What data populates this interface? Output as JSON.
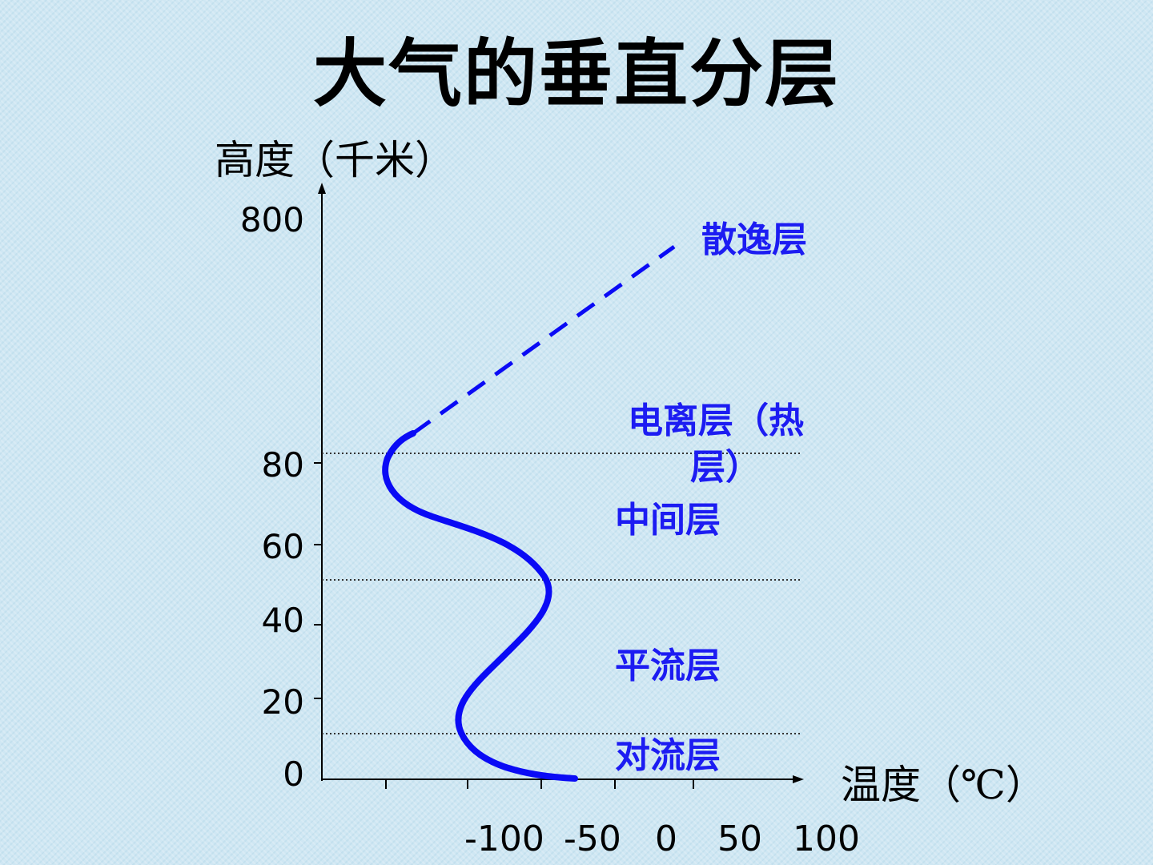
{
  "title": "大气的垂直分层",
  "y_axis_title": "高度（千米）",
  "x_axis_title": "温度（℃）",
  "y_ticks": [
    "800",
    "80",
    "60",
    "40",
    "20",
    "0"
  ],
  "x_ticks": [
    "-100",
    "-50",
    "0",
    "50",
    "100"
  ],
  "layers": {
    "exosphere": "散逸层",
    "thermosphere_line1": "电离层（热",
    "thermosphere_line2": "层）",
    "mesosphere": "中间层",
    "stratosphere": "平流层",
    "troposphere": "对流层"
  },
  "colors": {
    "curve": "#0a0af5",
    "label": "#1c1cf2",
    "axis": "#000000",
    "boundary": "#333333"
  }
}
